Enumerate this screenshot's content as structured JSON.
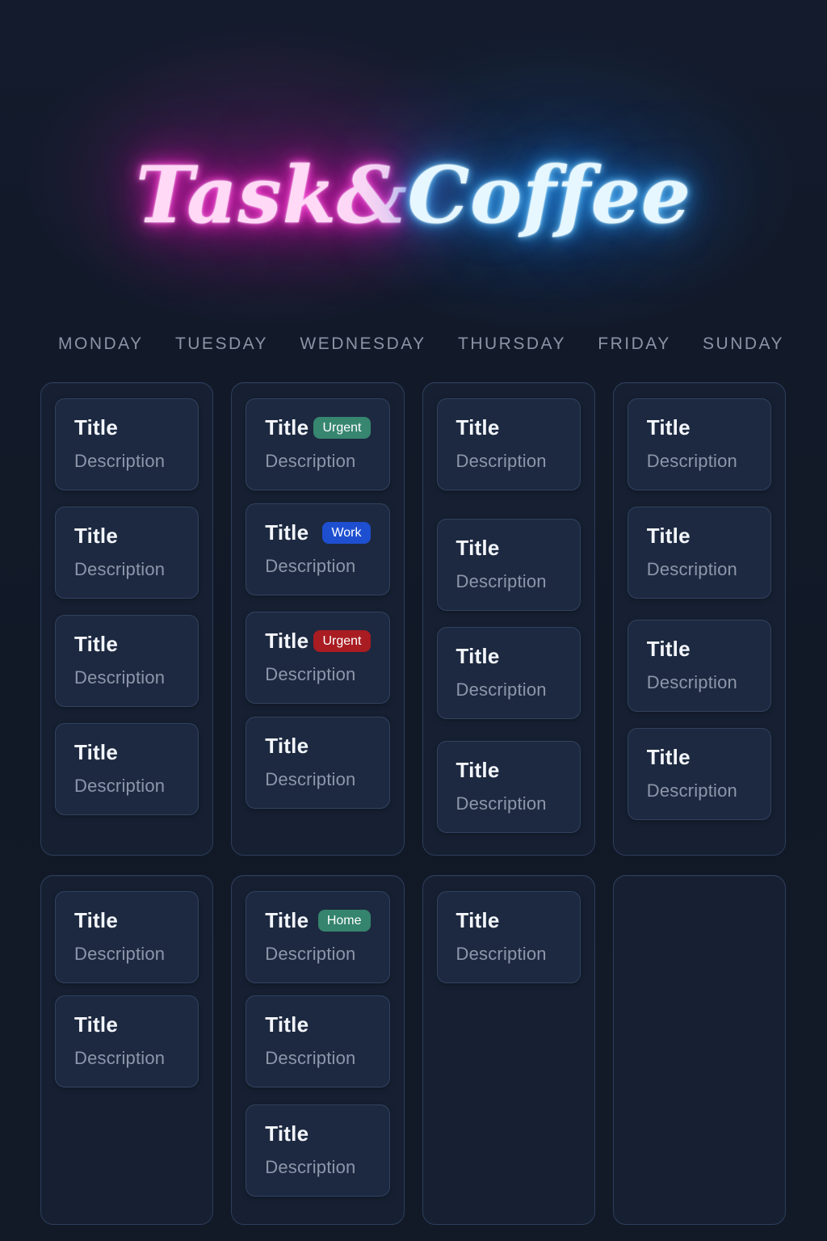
{
  "neon_sign": {
    "left": "Task&",
    "right": "Coffee"
  },
  "colors": {
    "background": "#111927",
    "column_bg": "#162032",
    "card_bg": "#1d2940",
    "neon_pink": "#f32cc8",
    "neon_blue": "#35a3f5",
    "day_label": "#8b93a6",
    "title_text": "#f3f6fb",
    "description_text": "#8d96aa",
    "badge_green": "#37866f",
    "badge_blue": "#1d4fd0",
    "badge_red": "#a81c22"
  },
  "days": [
    "MONDAY",
    "TUESDAY",
    "WEDNESDAY",
    "THURSDAY",
    "FRIDAY",
    "SUNDAY"
  ],
  "board": {
    "top": [
      {
        "id": "top-column-1",
        "cards": [
          {
            "title": "Title",
            "description": "Description",
            "badge": null
          },
          {
            "title": "Title",
            "description": "Description",
            "badge": null
          },
          {
            "title": "Title",
            "description": "Description",
            "badge": null
          },
          {
            "title": "Title",
            "description": "Description",
            "badge": null
          }
        ]
      },
      {
        "id": "top-column-2",
        "cards": [
          {
            "title": "Title",
            "description": "Description",
            "badge": {
              "label": "Urgent",
              "color": "#37866f"
            }
          },
          {
            "title": "Title",
            "description": "Description",
            "badge": {
              "label": "Work",
              "color": "#1d4fd0"
            }
          },
          {
            "title": "Title",
            "description": "Description",
            "badge": {
              "label": "Urgent",
              "color": "#a81c22"
            }
          },
          {
            "title": "Title",
            "description": "Description",
            "badge": null
          }
        ]
      },
      {
        "id": "top-column-3",
        "cards": [
          {
            "title": "Title",
            "description": "Description",
            "badge": null
          },
          {
            "title": "Title",
            "description": "Description",
            "badge": null
          },
          {
            "title": "Title",
            "description": "Description",
            "badge": null
          },
          {
            "title": "Title",
            "description": "Description",
            "badge": null
          }
        ]
      },
      {
        "id": "top-column-4",
        "cards": [
          {
            "title": "Title",
            "description": "Description",
            "badge": null
          },
          {
            "title": "Title",
            "description": "Description",
            "badge": null
          },
          {
            "title": "Title",
            "description": "Description",
            "badge": null
          },
          {
            "title": "Title",
            "description": "Description",
            "badge": null
          }
        ]
      }
    ],
    "bottom": [
      {
        "id": "bottom-column-1",
        "cards": [
          {
            "title": "Title",
            "description": "Description",
            "badge": null
          },
          {
            "title": "Title",
            "description": "Description",
            "badge": null
          }
        ]
      },
      {
        "id": "bottom-column-2",
        "cards": [
          {
            "title": "Title",
            "description": "Description",
            "badge": {
              "label": "Home",
              "color": "#35846d"
            }
          },
          {
            "title": "Title",
            "description": "Description",
            "badge": null
          },
          {
            "title": "Title",
            "description": "Description",
            "badge": null
          }
        ]
      },
      {
        "id": "bottom-column-3",
        "cards": [
          {
            "title": "Title",
            "description": "Description",
            "badge": null
          }
        ]
      },
      {
        "id": "bottom-column-4",
        "cards": []
      }
    ]
  }
}
